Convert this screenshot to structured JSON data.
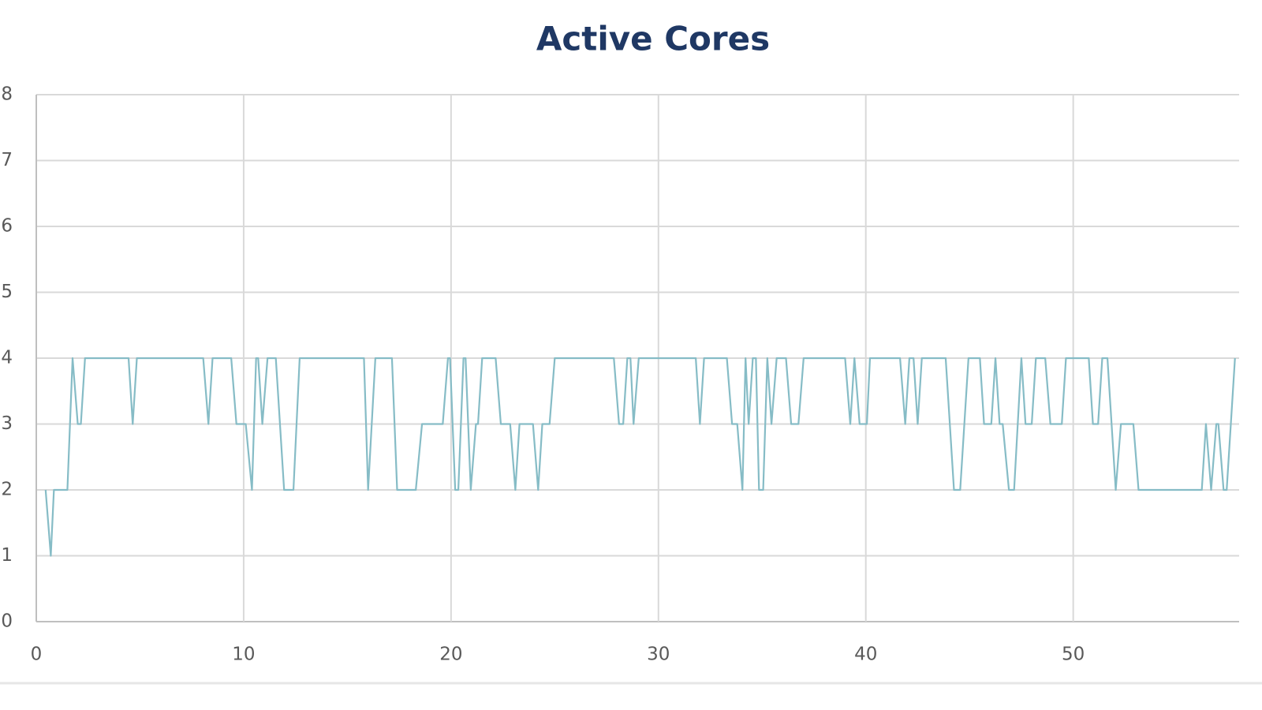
{
  "chart_data": {
    "type": "line",
    "title": "Active Cores",
    "x": [
      0.45,
      0.7,
      0.85,
      1.5,
      1.75,
      2.0,
      2.15,
      2.35,
      4.45,
      4.65,
      4.85,
      8.05,
      8.3,
      8.5,
      9.4,
      9.65,
      10.1,
      10.4,
      10.6,
      10.7,
      10.9,
      11.15,
      11.55,
      11.95,
      12.4,
      12.7,
      15.8,
      16.0,
      16.35,
      17.15,
      17.4,
      18.3,
      18.6,
      19.6,
      19.85,
      19.95,
      20.2,
      20.35,
      20.6,
      20.7,
      20.95,
      21.2,
      21.3,
      21.5,
      22.15,
      22.4,
      22.85,
      23.1,
      23.3,
      23.95,
      24.2,
      24.4,
      24.75,
      25.0,
      27.85,
      28.1,
      28.3,
      28.5,
      28.65,
      28.8,
      29.05,
      31.8,
      32.0,
      32.2,
      33.3,
      33.55,
      33.8,
      34.05,
      34.2,
      34.35,
      34.55,
      34.7,
      34.85,
      35.05,
      35.25,
      35.45,
      35.7,
      36.15,
      36.4,
      36.75,
      37.0,
      39.0,
      39.25,
      39.45,
      39.7,
      40.05,
      40.2,
      41.65,
      41.9,
      42.1,
      42.3,
      42.5,
      42.7,
      43.85,
      44.25,
      44.55,
      44.95,
      45.5,
      45.7,
      46.05,
      46.25,
      46.45,
      46.6,
      46.9,
      47.15,
      47.5,
      47.7,
      48.0,
      48.2,
      48.65,
      48.9,
      49.45,
      49.65,
      50.75,
      50.95,
      51.2,
      51.4,
      51.65,
      52.05,
      52.3,
      52.9,
      53.15,
      56.2,
      56.4,
      56.65,
      56.9,
      57.0,
      57.25,
      57.4,
      57.8
    ],
    "values": [
      2,
      1,
      2,
      2,
      4,
      3,
      3,
      4,
      4,
      3,
      4,
      4,
      3,
      4,
      4,
      3,
      3,
      2,
      4,
      4,
      3,
      4,
      4,
      2,
      2,
      4,
      4,
      2,
      4,
      4,
      2,
      2,
      3,
      3,
      4,
      4,
      2,
      2,
      4,
      4,
      2,
      3,
      3,
      4,
      4,
      3,
      3,
      2,
      3,
      3,
      2,
      3,
      3,
      4,
      4,
      3,
      3,
      4,
      4,
      3,
      4,
      4,
      3,
      4,
      4,
      3,
      3,
      2,
      4,
      3,
      4,
      4,
      2,
      2,
      4,
      3,
      4,
      4,
      3,
      3,
      4,
      4,
      3,
      4,
      3,
      3,
      4,
      4,
      3,
      4,
      4,
      3,
      4,
      4,
      2,
      2,
      4,
      4,
      3,
      3,
      4,
      3,
      3,
      2,
      2,
      4,
      3,
      3,
      4,
      4,
      3,
      3,
      4,
      4,
      3,
      3,
      4,
      4,
      2,
      3,
      3,
      2,
      2,
      3,
      2,
      3,
      3,
      2,
      2,
      4
    ],
    "color": "#86bcc6",
    "xlim": [
      0,
      58
    ],
    "xticks": [
      0,
      10,
      20,
      30,
      40,
      50
    ],
    "ylim": [
      0,
      8
    ],
    "yticks": [
      0,
      1,
      2,
      3,
      4,
      5,
      6,
      7,
      8
    ],
    "grid": true
  }
}
